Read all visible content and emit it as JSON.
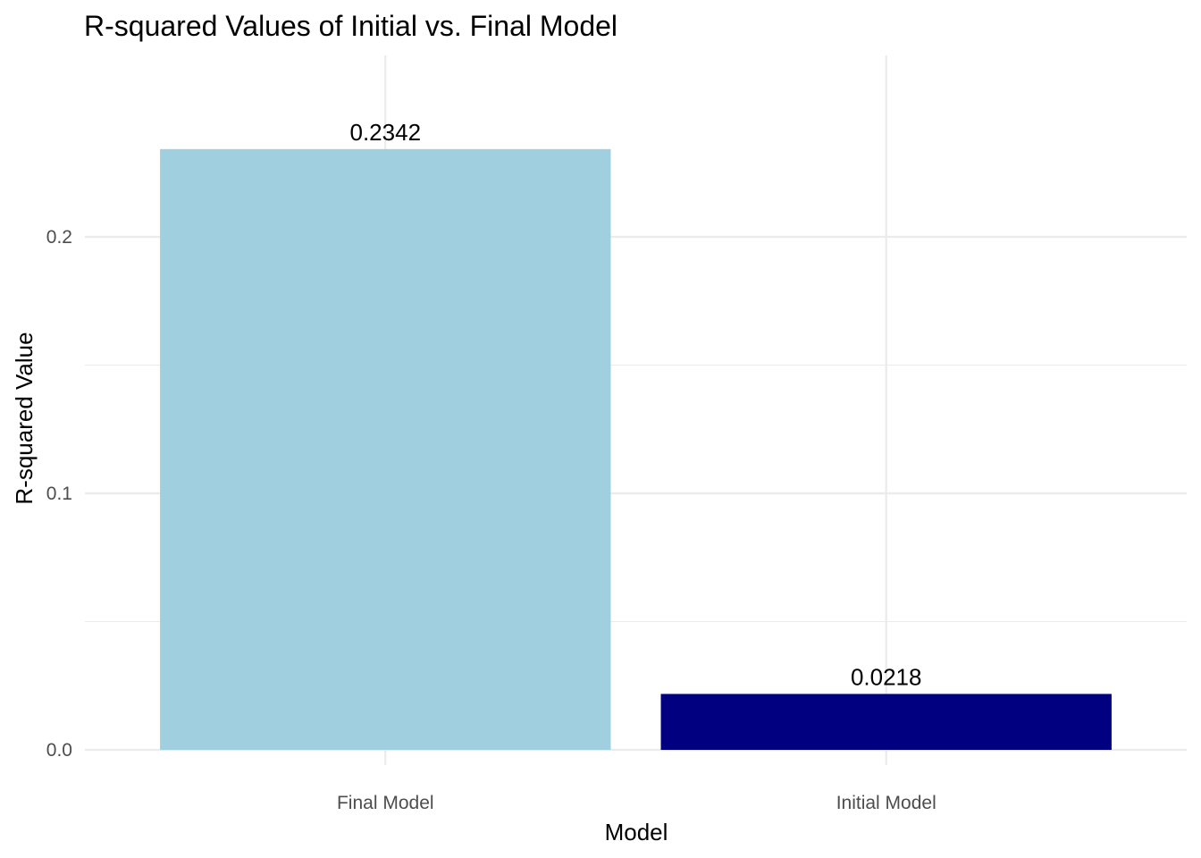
{
  "chart_data": {
    "type": "bar",
    "title": "R-squared Values of Initial vs. Final Model",
    "xlabel": "Model",
    "ylabel": "R-squared Value",
    "categories": [
      "Final Model",
      "Initial Model"
    ],
    "values": [
      0.2342,
      0.0218
    ],
    "value_labels": [
      "0.2342",
      "0.0218"
    ],
    "bar_colors": [
      "#a0cfe0",
      "#000080"
    ],
    "yticks": [
      0.0,
      0.1,
      0.2
    ],
    "ytick_labels": [
      "0.0",
      "0.1",
      "0.2"
    ],
    "ylim": [
      0,
      0.2459
    ],
    "grid": true,
    "legend": "none"
  }
}
